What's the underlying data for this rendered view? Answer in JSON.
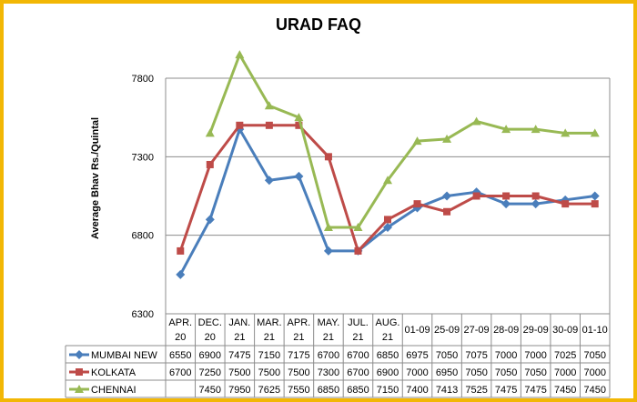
{
  "chart_data": {
    "type": "line",
    "title": "URAD FAQ",
    "ylabel": "Average Bhav Rs./Quintal",
    "xlabel": "",
    "ylim": [
      6300,
      7800
    ],
    "y_ticks": [
      "6300",
      "6800",
      "7300",
      "7800"
    ],
    "grid": true,
    "legend": "data-table",
    "categories": [
      [
        "APR.",
        "20"
      ],
      [
        "DEC.",
        "20"
      ],
      [
        "JAN.",
        "21"
      ],
      [
        "MAR.",
        "21"
      ],
      [
        "APR.",
        "21"
      ],
      [
        "MAY.",
        "21"
      ],
      [
        "JUL.",
        "21"
      ],
      [
        "AUG.",
        "21"
      ],
      [
        "01-09"
      ],
      [
        "25-09"
      ],
      [
        "27-09"
      ],
      [
        "28-09"
      ],
      [
        "29-09"
      ],
      [
        "30-09"
      ],
      [
        "01-10"
      ]
    ],
    "series": [
      {
        "name": "MUMBAI NEW",
        "color": "#4a7ebb",
        "marker": "diamond",
        "values": [
          6550,
          6900,
          7475,
          7150,
          7175,
          6700,
          6700,
          6850,
          6975,
          7050,
          7075,
          7000,
          7000,
          7025,
          7050
        ],
        "labels": [
          "6550",
          "6900",
          "7475",
          "7150",
          "7175",
          "6700",
          "6700",
          "6850",
          "6975",
          "7050",
          "7075",
          "7000",
          "7000",
          "7025",
          "7050"
        ]
      },
      {
        "name": "KOLKATA",
        "color": "#be4b48",
        "marker": "square",
        "values": [
          6700,
          7250,
          7500,
          7500,
          7500,
          7300,
          6700,
          6900,
          7000,
          6950,
          7050,
          7050,
          7050,
          7000,
          7000
        ],
        "labels": [
          "6700",
          "7250",
          "7500",
          "7500",
          "7500",
          "7300",
          "6700",
          "6900",
          "7000",
          "6950",
          "7050",
          "7050",
          "7050",
          "7000",
          "7000"
        ]
      },
      {
        "name": "CHENNAI",
        "color": "#98b954",
        "marker": "triangle",
        "values": [
          null,
          7450,
          7950,
          7625,
          7550,
          6850,
          6850,
          7150,
          7400,
          7413,
          7525,
          7475,
          7475,
          7450,
          7450
        ],
        "labels": [
          "",
          "7450",
          "7950",
          "7625",
          "7550",
          "6850",
          "6850",
          "7150",
          "7400",
          "7413",
          "7525",
          "7475",
          "7475",
          "7450",
          "7450"
        ]
      }
    ]
  }
}
